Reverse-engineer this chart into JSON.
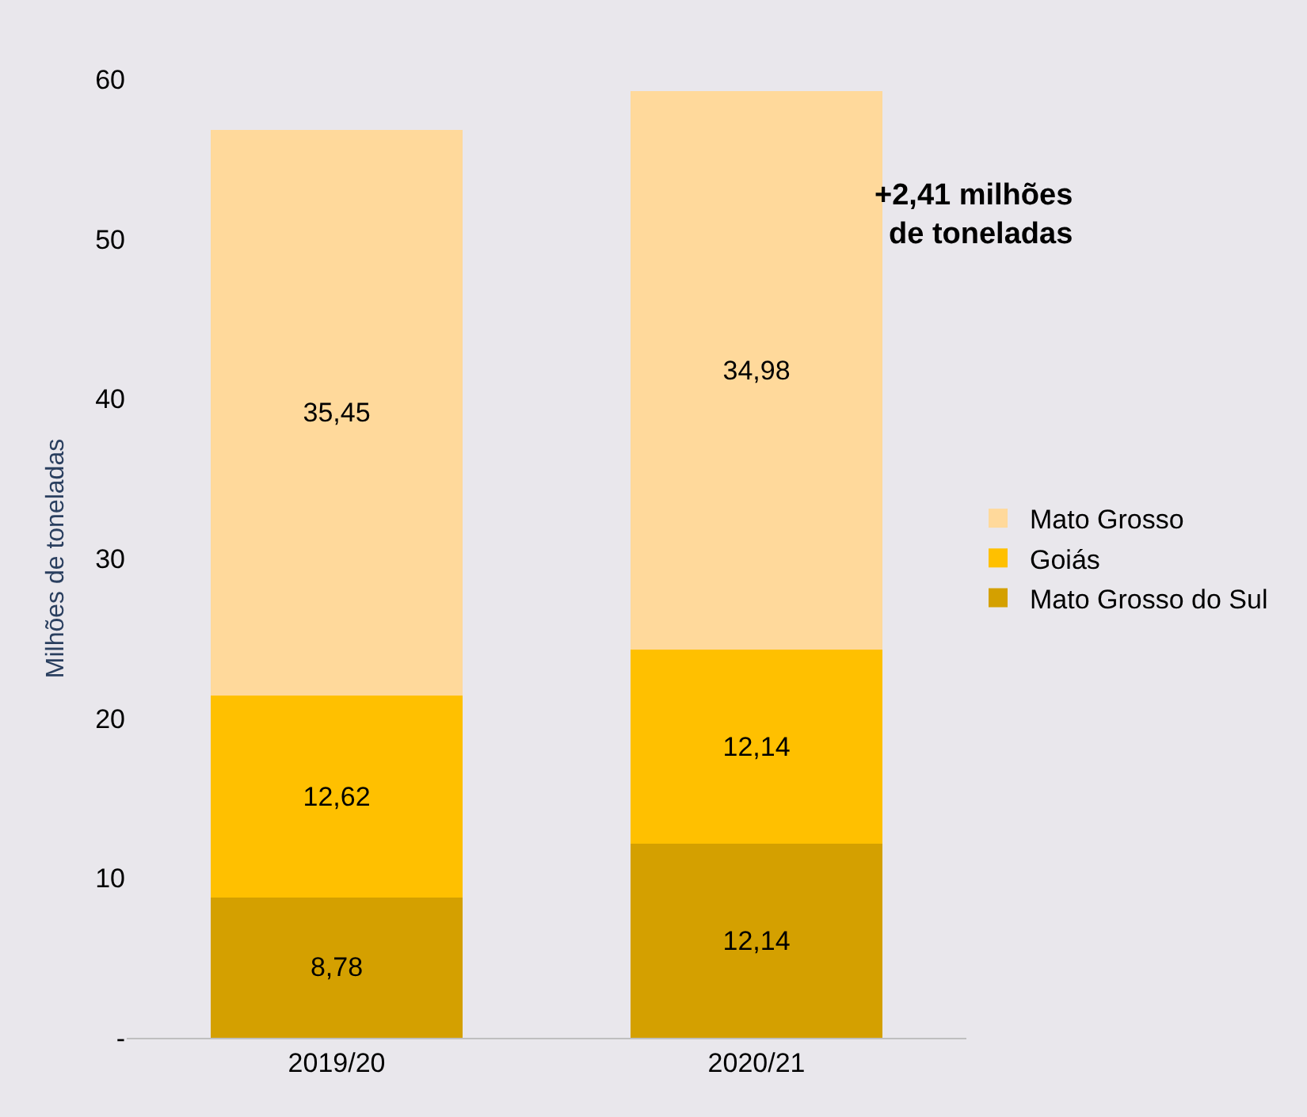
{
  "chart_data": {
    "type": "bar",
    "stacked": true,
    "ylabel": "Milhões de toneladas",
    "categories": [
      "2019/20",
      "2020/21"
    ],
    "series": [
      {
        "name": "Mato Grosso do Sul",
        "color": "#d4a000",
        "values": [
          8.78,
          12.14
        ],
        "value_labels": [
          "8,78",
          "12,14"
        ]
      },
      {
        "name": "Goiás",
        "color": "#ffc000",
        "values": [
          12.62,
          12.14
        ],
        "value_labels": [
          "12,62",
          "12,14"
        ]
      },
      {
        "name": "Mato Grosso",
        "color": "#ffd99b",
        "values": [
          35.45,
          34.98
        ],
        "value_labels": [
          "35,45",
          "34,98"
        ]
      }
    ],
    "ylim": [
      0,
      60
    ],
    "yticks": [
      {
        "value": 0,
        "label": "-"
      },
      10,
      20,
      30,
      40,
      50,
      60
    ],
    "grid": false,
    "legend": "right",
    "annotations": [
      "+2,41 milhões\nde toneladas"
    ]
  }
}
